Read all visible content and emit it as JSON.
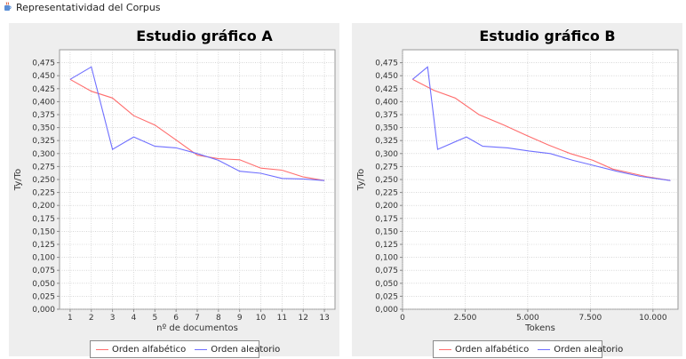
{
  "window": {
    "title": "Representatividad del Corpus",
    "icon": "java-cup-icon"
  },
  "colors": {
    "series_1": "#ff6d6d",
    "series_2": "#6f6fff",
    "plot_bg": "#ffffff",
    "grid": "#c0c0c0"
  },
  "chart_data": [
    {
      "type": "line",
      "title": "Estudio gráfico A",
      "xlabel": "nº de documentos",
      "ylabel": "Ty/To",
      "xlim": [
        0.5,
        13.5
      ],
      "ylim": [
        0,
        0.5
      ],
      "x_ticks": [
        1,
        2,
        3,
        4,
        5,
        6,
        7,
        8,
        9,
        10,
        11,
        12,
        13
      ],
      "x_tick_labels": [
        "1",
        "2",
        "3",
        "4",
        "5",
        "6",
        "7",
        "8",
        "9",
        "10",
        "11",
        "12",
        "13"
      ],
      "y_ticks": [
        0,
        0.025,
        0.05,
        0.075,
        0.1,
        0.125,
        0.15,
        0.175,
        0.2,
        0.225,
        0.25,
        0.275,
        0.3,
        0.325,
        0.35,
        0.375,
        0.4,
        0.425,
        0.45,
        0.475
      ],
      "y_tick_labels": [
        "0,000",
        "0,025",
        "0,050",
        "0,075",
        "0,100",
        "0,125",
        "0,150",
        "0,175",
        "0,200",
        "0,225",
        "0,250",
        "0,275",
        "0,300",
        "0,325",
        "0,350",
        "0,375",
        "0,400",
        "0,425",
        "0,450",
        "0,475"
      ],
      "grid": true,
      "legend": "bottom",
      "series": [
        {
          "name": "Orden alfabético",
          "x": [
            1,
            2,
            3,
            4,
            5,
            6,
            7,
            8,
            9,
            10,
            11,
            12,
            13
          ],
          "y": [
            0.443,
            0.42,
            0.407,
            0.373,
            0.355,
            0.326,
            0.297,
            0.29,
            0.288,
            0.272,
            0.268,
            0.255,
            0.248
          ]
        },
        {
          "name": "Orden aleatorio",
          "x": [
            1,
            2,
            3,
            4,
            5,
            6,
            7,
            8,
            9,
            10,
            11,
            12,
            13
          ],
          "y": [
            0.443,
            0.467,
            0.308,
            0.332,
            0.314,
            0.311,
            0.3,
            0.287,
            0.266,
            0.262,
            0.252,
            0.251,
            0.248
          ]
        }
      ]
    },
    {
      "type": "line",
      "title": "Estudio gráfico B",
      "xlabel": "Tokens",
      "ylabel": "Ty/To",
      "xlim": [
        0,
        11000
      ],
      "ylim": [
        0,
        0.5
      ],
      "x_ticks": [
        0,
        2500,
        5000,
        7500,
        10000
      ],
      "x_tick_labels": [
        "0",
        "2.500",
        "5.000",
        "7.500",
        "10.000"
      ],
      "y_ticks": [
        0,
        0.025,
        0.05,
        0.075,
        0.1,
        0.125,
        0.15,
        0.175,
        0.2,
        0.225,
        0.25,
        0.275,
        0.3,
        0.325,
        0.35,
        0.375,
        0.4,
        0.425,
        0.45,
        0.475
      ],
      "y_tick_labels": [
        "0,000",
        "0,025",
        "0,050",
        "0,075",
        "0,100",
        "0,125",
        "0,150",
        "0,175",
        "0,200",
        "0,225",
        "0,250",
        "0,275",
        "0,300",
        "0,325",
        "0,350",
        "0,375",
        "0,400",
        "0,425",
        "0,450",
        "0,475"
      ],
      "grid": true,
      "legend": "bottom",
      "series": [
        {
          "name": "Orden alfabético",
          "x": [
            400,
            1250,
            2100,
            3050,
            4050,
            4900,
            5800,
            6700,
            7600,
            8400,
            9050,
            9800,
            10700
          ],
          "y": [
            0.443,
            0.422,
            0.407,
            0.375,
            0.355,
            0.336,
            0.317,
            0.3,
            0.287,
            0.27,
            0.263,
            0.255,
            0.248
          ]
        },
        {
          "name": "Orden aleatorio",
          "x": [
            400,
            1000,
            1400,
            2550,
            3200,
            4200,
            5050,
            5900,
            6800,
            7800,
            8550,
            9500,
            10700
          ],
          "y": [
            0.443,
            0.467,
            0.308,
            0.332,
            0.314,
            0.311,
            0.305,
            0.3,
            0.287,
            0.275,
            0.266,
            0.256,
            0.248
          ]
        }
      ]
    }
  ]
}
